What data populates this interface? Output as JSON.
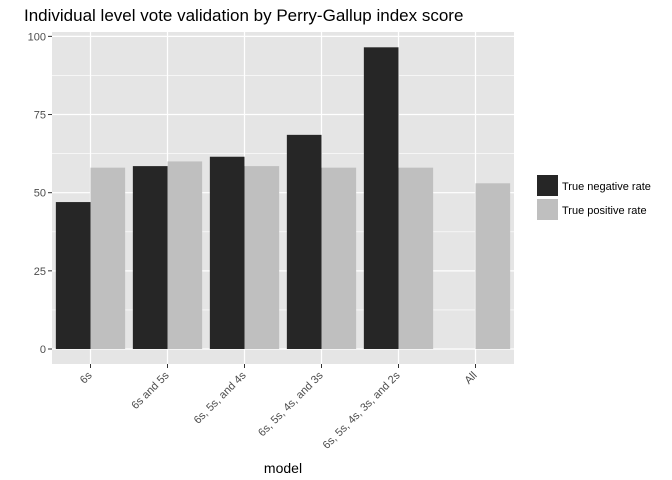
{
  "chart_data": {
    "type": "bar",
    "title": "Individual level vote validation by Perry-Gallup index score",
    "xlabel": "model",
    "ylabel": "",
    "categories": [
      "6s",
      "6s and 5s",
      "6s, 5s, and 4s",
      "6s, 5s, 4s, and 3s",
      "6s, 5s, 4s, 3s, and 2s",
      "All"
    ],
    "series": [
      {
        "name": "True negative rate",
        "color": "#262626",
        "values": [
          47,
          58.5,
          61.5,
          68.5,
          96.5,
          null
        ]
      },
      {
        "name": "True positive rate",
        "color": "#bfbfbf",
        "values": [
          58,
          60,
          58.5,
          58,
          58,
          53
        ]
      }
    ],
    "ylim": [
      -4.8,
      101.4
    ],
    "yticks": [
      0,
      25,
      50,
      75,
      100
    ],
    "grid": true,
    "legend_position": "right",
    "panel_background": "#e5e5e5",
    "grid_color": "#ffffff"
  }
}
